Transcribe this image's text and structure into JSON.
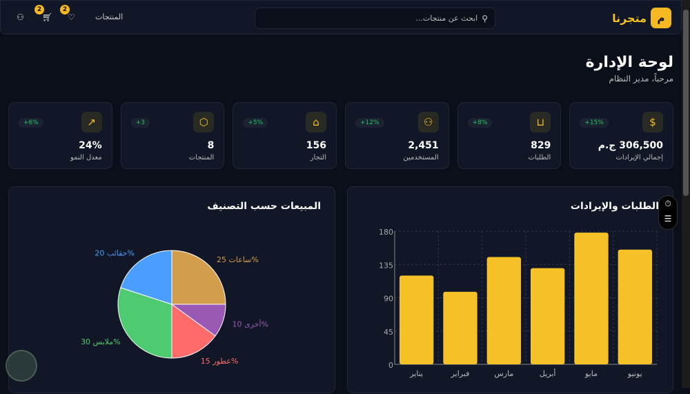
{
  "nav": {
    "logo_letter": "م",
    "logo_text": "متجرنا",
    "search_placeholder": "ابحث عن منتجات...",
    "products_link": "المنتجات",
    "wishlist_count": "2",
    "cart_count": "2"
  },
  "header": {
    "title": "لوحة الإدارة",
    "subtitle": "مرحباً، مدير النظام"
  },
  "stats": [
    {
      "icon": "dollar",
      "value": "306,500 ج.م",
      "label": "إجمالي الإيرادات",
      "change": "+15%"
    },
    {
      "icon": "bag",
      "value": "829",
      "label": "الطلبات",
      "change": "+8%"
    },
    {
      "icon": "users",
      "value": "2,451",
      "label": "المستخدمين",
      "change": "+12%"
    },
    {
      "icon": "store",
      "value": "156",
      "label": "التجار",
      "change": "+5%"
    },
    {
      "icon": "box",
      "value": "8",
      "label": "المنتجات",
      "change": "+3"
    },
    {
      "icon": "trend",
      "value": "24%",
      "label": "معدل النمو",
      "change": "+6%"
    }
  ],
  "colors": {
    "accent": "#f4c020",
    "positive": "#22c55e"
  },
  "chart_data": [
    {
      "type": "bar",
      "title": "الطلبات والإيرادات",
      "categories": [
        "يناير",
        "فبراير",
        "مارس",
        "أبريل",
        "مايو",
        "يونيو"
      ],
      "values": [
        120,
        98,
        145,
        130,
        178,
        155
      ],
      "yticks": [
        0,
        45,
        90,
        135,
        180
      ],
      "ylim": [
        0,
        180
      ],
      "color": "#f4c226",
      "grid": true
    },
    {
      "type": "pie",
      "title": "المبيعات حسب التصنيف",
      "slices": [
        {
          "label": "ساعات",
          "value": 25,
          "color": "#d39e4c"
        },
        {
          "label": "أخرى",
          "value": 10,
          "color": "#9b59b6"
        },
        {
          "label": "عطور",
          "value": 15,
          "color": "#ff6b6b"
        },
        {
          "label": "ملابس",
          "value": 30,
          "color": "#4ecb71"
        },
        {
          "label": "حقائب",
          "value": 20,
          "color": "#4a9eff"
        }
      ]
    }
  ]
}
